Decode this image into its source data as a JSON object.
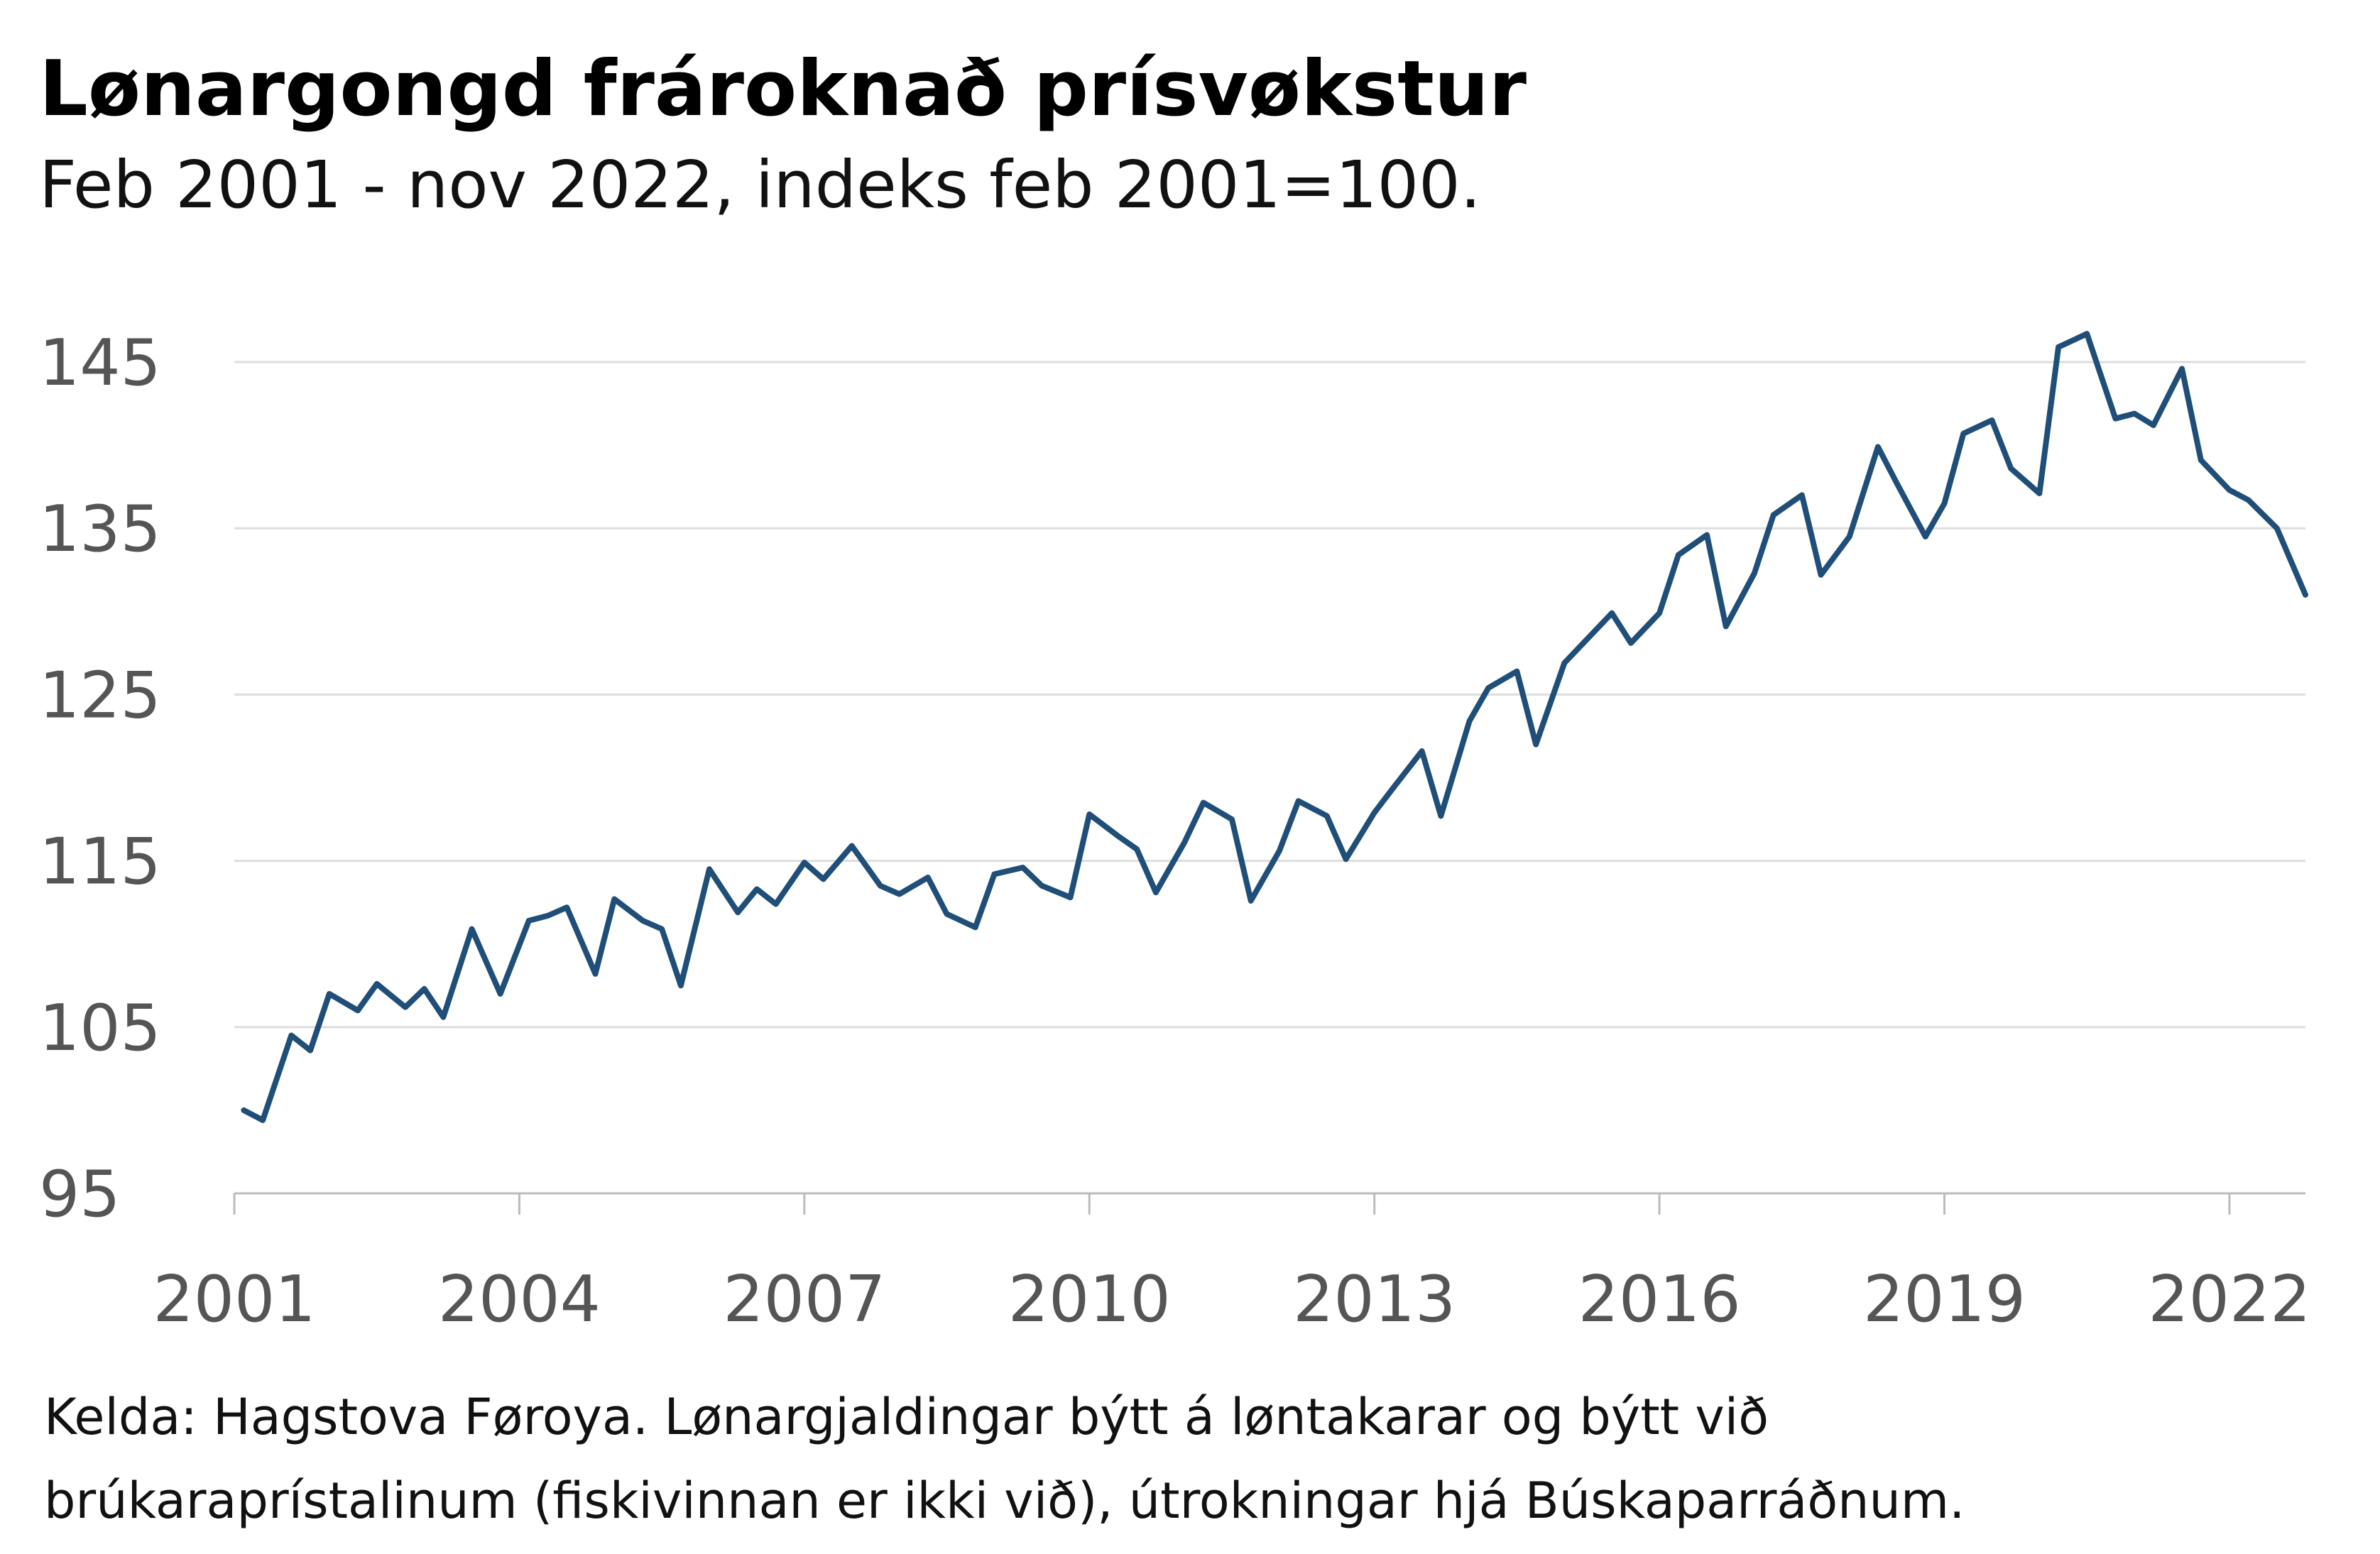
{
  "chart_data": {
    "type": "line",
    "title": "Lønargongd frároknað prísvøkstur",
    "subtitle": "Feb 2001 - nov 2022, indeks feb 2001=100.",
    "source": [
      "Kelda: Hagstova Føroya. Lønargjaldingar býtt á løntakarar og býtt við",
      "brúkaraprístalinum (fiskivinnan er ikki við), útrokningar hjá Búskaparráðnum."
    ],
    "x": [
      2001.1,
      2001.3,
      2001.6,
      2001.8,
      2002.0,
      2002.3,
      2002.5,
      2002.8,
      2003.0,
      2003.2,
      2003.5,
      2003.8,
      2004.1,
      2004.3,
      2004.5,
      2004.8,
      2005.0,
      2005.3,
      2005.5,
      2005.7,
      2006.0,
      2006.3,
      2006.5,
      2006.7,
      2007.0,
      2007.2,
      2007.5,
      2007.8,
      2008.0,
      2008.3,
      2008.5,
      2008.8,
      2009.0,
      2009.3,
      2009.5,
      2009.8,
      2010.0,
      2010.3,
      2010.5,
      2010.7,
      2011.0,
      2011.2,
      2011.5,
      2011.7,
      2012.0,
      2012.2,
      2012.5,
      2012.7,
      2013.0,
      2013.2,
      2013.5,
      2013.7,
      2014.0,
      2014.2,
      2014.5,
      2014.7,
      2015.0,
      2015.2,
      2015.5,
      2015.7,
      2016.0,
      2016.2,
      2016.5,
      2016.7,
      2017.0,
      2017.2,
      2017.5,
      2017.7,
      2018.0,
      2018.3,
      2018.5,
      2018.8,
      2019.0,
      2019.2,
      2019.5,
      2019.7,
      2020.0,
      2020.2,
      2020.5,
      2020.8,
      2021.0,
      2021.2,
      2021.5,
      2021.7,
      2022.0,
      2022.2,
      2022.5,
      2022.8
    ],
    "series": [
      {
        "color": "#1f4e79",
        "values": [
          100.0,
          99.4,
          104.5,
          103.6,
          107.0,
          106.0,
          107.6,
          106.2,
          107.3,
          105.6,
          110.9,
          107.0,
          111.4,
          111.7,
          112.2,
          108.2,
          112.7,
          111.4,
          110.9,
          107.5,
          114.5,
          111.9,
          113.3,
          112.4,
          114.9,
          113.9,
          115.9,
          113.5,
          113.0,
          114.0,
          111.8,
          111.0,
          114.2,
          114.6,
          113.5,
          112.8,
          117.8,
          116.5,
          115.7,
          113.1,
          116.1,
          118.5,
          117.5,
          112.6,
          115.6,
          118.6,
          117.7,
          115.1,
          117.9,
          119.4,
          121.6,
          117.7,
          123.4,
          125.4,
          126.4,
          122.0,
          126.9,
          128.1,
          129.9,
          128.1,
          129.9,
          133.4,
          134.6,
          129.1,
          132.3,
          135.8,
          137.0,
          132.2,
          134.5,
          139.9,
          137.7,
          134.5,
          136.5,
          140.7,
          141.5,
          138.6,
          137.1,
          145.9,
          146.7,
          141.6,
          141.9,
          141.2,
          144.6,
          139.1,
          137.3,
          136.7,
          135.0,
          131.0
        ]
      }
    ],
    "xlim": [
      2001,
      2022.8
    ],
    "xticks": [
      2001,
      2004,
      2007,
      2010,
      2013,
      2016,
      2019,
      2022
    ],
    "ylim": [
      95,
      145
    ],
    "yticks": [
      95,
      105,
      115,
      125,
      135,
      145
    ],
    "grid": true
  }
}
